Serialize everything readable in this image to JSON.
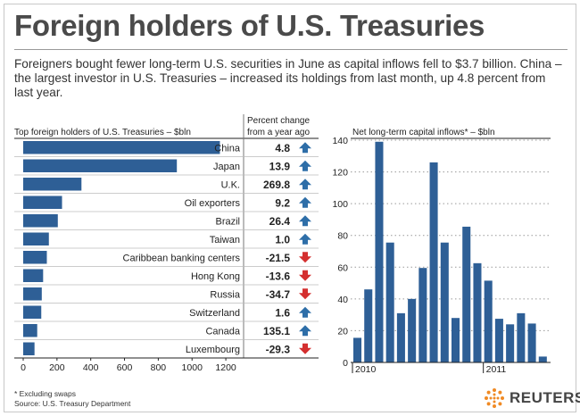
{
  "title": "Foreign holders of U.S. Treasuries",
  "subtitle": "Foreigners bought fewer long-term U.S. securities in June as capital inflows fell to $3.7 billion. China – the largest investor in U.S. Treasuries – increased its holdings from last month, up 4.8 percent from last year.",
  "footnote": {
    "line1": "* Excluding swaps",
    "line2": "Source: U.S. Treasury Department"
  },
  "logo": "REUTERS",
  "colors": {
    "bar": "#2e5f96",
    "up": "#2e6ea8",
    "down": "#d42f2f"
  },
  "chart_data": [
    {
      "type": "bar",
      "orientation": "horizontal",
      "title": "Top foreign holders of U.S. Treasuries – $bln",
      "change_header_line1": "Percent change",
      "change_header_line2": "from a year ago",
      "categories": [
        "China",
        "Japan",
        "U.K.",
        "Oil exporters",
        "Brazil",
        "Taiwan",
        "Caribbean banking centers",
        "Hong Kong",
        "Russia",
        "Switzerland",
        "Canada",
        "Luxembourg"
      ],
      "values": [
        1165,
        910,
        345,
        230,
        205,
        152,
        140,
        118,
        110,
        107,
        83,
        67
      ],
      "changes": [
        "4.8",
        "13.9",
        "269.8",
        "9.2",
        "26.4",
        "1.0",
        "-21.5",
        "-13.6",
        "-34.7",
        "1.6",
        "135.1",
        "-29.3"
      ],
      "directions": [
        "up",
        "up",
        "up",
        "up",
        "up",
        "up",
        "down",
        "down",
        "down",
        "up",
        "up",
        "down"
      ],
      "xlim": [
        0,
        1300
      ],
      "xticks": [
        0,
        200,
        400,
        600,
        800,
        1000,
        1200
      ]
    },
    {
      "type": "bar",
      "title": "Net long-term capital inflows* – $bln",
      "values": [
        15.5,
        46,
        139,
        75.5,
        31,
        40,
        59.5,
        126,
        75.5,
        28,
        85.5,
        62.5,
        51.5,
        27.5,
        24,
        31,
        24.5,
        3.7
      ],
      "ylim": [
        0,
        140
      ],
      "yticks": [
        0,
        20,
        40,
        60,
        80,
        100,
        120,
        140
      ],
      "xlabels": [
        {
          "label": "2010",
          "index": 0
        },
        {
          "label": "2011",
          "index": 12
        }
      ]
    }
  ]
}
